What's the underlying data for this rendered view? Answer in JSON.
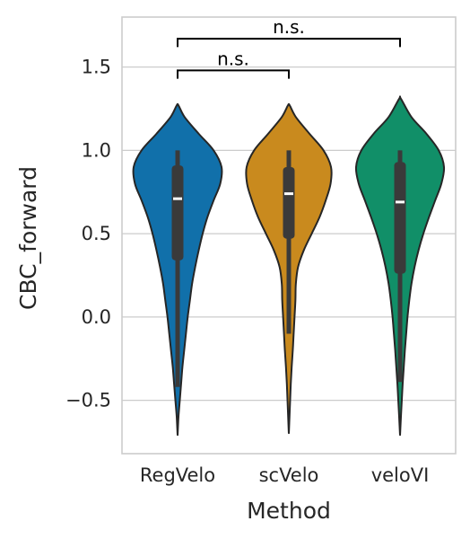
{
  "chart_data": {
    "type": "violin",
    "title": "",
    "xlabel": "Method",
    "ylabel": "CBC_forward",
    "categories": [
      "RegVelo",
      "scVelo",
      "veloVI"
    ],
    "colors": [
      "#1170aa",
      "#c98a1e",
      "#118f68"
    ],
    "ylim": [
      -0.82,
      1.8
    ],
    "yticks": [
      -0.5,
      0.0,
      0.5,
      1.0,
      1.5
    ],
    "ytick_labels": [
      "−0.5",
      "0.0",
      "0.5",
      "1.0",
      "1.5"
    ],
    "grid": "horizontal",
    "violins": [
      {
        "name": "RegVelo",
        "min": -0.7,
        "max": 1.27,
        "whisker_low": -0.42,
        "whisker_high": 1.0,
        "q1": 0.34,
        "median": 0.71,
        "q3": 0.91,
        "density": [
          [
            -0.7,
            0.002
          ],
          [
            -0.6,
            0.02
          ],
          [
            -0.5,
            0.05
          ],
          [
            -0.4,
            0.08
          ],
          [
            -0.3,
            0.11
          ],
          [
            -0.2,
            0.15
          ],
          [
            -0.1,
            0.19
          ],
          [
            0.0,
            0.23
          ],
          [
            0.1,
            0.28
          ],
          [
            0.2,
            0.33
          ],
          [
            0.3,
            0.4
          ],
          [
            0.4,
            0.48
          ],
          [
            0.5,
            0.57
          ],
          [
            0.6,
            0.68
          ],
          [
            0.7,
            0.82
          ],
          [
            0.8,
            0.97
          ],
          [
            0.9,
            1.0
          ],
          [
            1.0,
            0.82
          ],
          [
            1.1,
            0.48
          ],
          [
            1.2,
            0.16
          ],
          [
            1.27,
            0.02
          ]
        ]
      },
      {
        "name": "scVelo",
        "min": -0.69,
        "max": 1.27,
        "whisker_low": -0.1,
        "whisker_high": 1.0,
        "q1": 0.47,
        "median": 0.74,
        "q3": 0.9,
        "density": [
          [
            -0.69,
            0.002
          ],
          [
            -0.6,
            0.015
          ],
          [
            -0.5,
            0.03
          ],
          [
            -0.4,
            0.045
          ],
          [
            -0.3,
            0.065
          ],
          [
            -0.2,
            0.09
          ],
          [
            -0.1,
            0.11
          ],
          [
            0.0,
            0.13
          ],
          [
            0.1,
            0.15
          ],
          [
            0.2,
            0.16
          ],
          [
            0.3,
            0.21
          ],
          [
            0.4,
            0.34
          ],
          [
            0.5,
            0.52
          ],
          [
            0.6,
            0.7
          ],
          [
            0.7,
            0.84
          ],
          [
            0.8,
            0.95
          ],
          [
            0.9,
            0.96
          ],
          [
            1.0,
            0.79
          ],
          [
            1.1,
            0.47
          ],
          [
            1.2,
            0.16
          ],
          [
            1.27,
            0.02
          ]
        ]
      },
      {
        "name": "veloVI",
        "min": -0.7,
        "max": 1.31,
        "whisker_low": -0.39,
        "whisker_high": 1.0,
        "q1": 0.26,
        "median": 0.69,
        "q3": 0.93,
        "density": [
          [
            -0.7,
            0.002
          ],
          [
            -0.6,
            0.02
          ],
          [
            -0.5,
            0.04
          ],
          [
            -0.4,
            0.06
          ],
          [
            -0.3,
            0.085
          ],
          [
            -0.2,
            0.11
          ],
          [
            -0.1,
            0.14
          ],
          [
            0.0,
            0.17
          ],
          [
            0.1,
            0.21
          ],
          [
            0.2,
            0.26
          ],
          [
            0.3,
            0.33
          ],
          [
            0.4,
            0.42
          ],
          [
            0.5,
            0.53
          ],
          [
            0.6,
            0.66
          ],
          [
            0.7,
            0.8
          ],
          [
            0.8,
            0.94
          ],
          [
            0.9,
            1.0
          ],
          [
            1.0,
            0.88
          ],
          [
            1.1,
            0.6
          ],
          [
            1.2,
            0.26
          ],
          [
            1.31,
            0.02
          ]
        ]
      }
    ],
    "annotations": [
      {
        "label": "n.s.",
        "from": "RegVelo",
        "to": "scVelo",
        "y": 1.48,
        "tip": 0.05
      },
      {
        "label": "n.s.",
        "from": "RegVelo",
        "to": "veloVI",
        "y": 1.67,
        "tip": 0.05
      }
    ]
  }
}
